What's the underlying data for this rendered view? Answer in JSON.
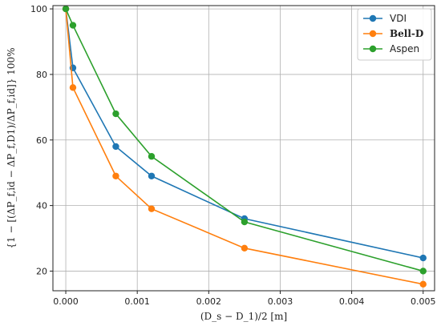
{
  "chart_data": {
    "type": "line",
    "xlabel": "(D_s − D_1)/2 [m]",
    "ylabel": "{1 − [(ΔP_f,id − ΔP_f,D1)/ΔP_f,id]} 100%",
    "xlim": [
      -0.00018,
      0.00516
    ],
    "ylim": [
      14,
      101
    ],
    "x_ticks": [
      0.0,
      0.001,
      0.002,
      0.003,
      0.004,
      0.005
    ],
    "x_tick_labels": [
      "0.000",
      "0.001",
      "0.002",
      "0.003",
      "0.004",
      "0.005"
    ],
    "y_ticks": [
      20,
      40,
      60,
      80,
      100
    ],
    "y_tick_labels": [
      "20",
      "40",
      "60",
      "80",
      "100"
    ],
    "grid": true,
    "legend_placement": "top-right",
    "series": [
      {
        "name": "VDI",
        "color": "#1f77b4",
        "x": [
          0.0,
          0.0001,
          0.0007,
          0.0012,
          0.0025,
          0.005
        ],
        "y": [
          100,
          82,
          58,
          49,
          36,
          24
        ]
      },
      {
        "name": "Bell-D",
        "color": "#ff7f0e",
        "x": [
          0.0,
          0.0001,
          0.0007,
          0.0012,
          0.0025,
          0.005
        ],
        "y": [
          100,
          76,
          49,
          39,
          27,
          16
        ]
      },
      {
        "name": "Aspen",
        "color": "#2ca02c",
        "x": [
          0.0,
          0.0001,
          0.0007,
          0.0012,
          0.0025,
          0.005
        ],
        "y": [
          100,
          95,
          68,
          55,
          35,
          20
        ]
      }
    ]
  }
}
